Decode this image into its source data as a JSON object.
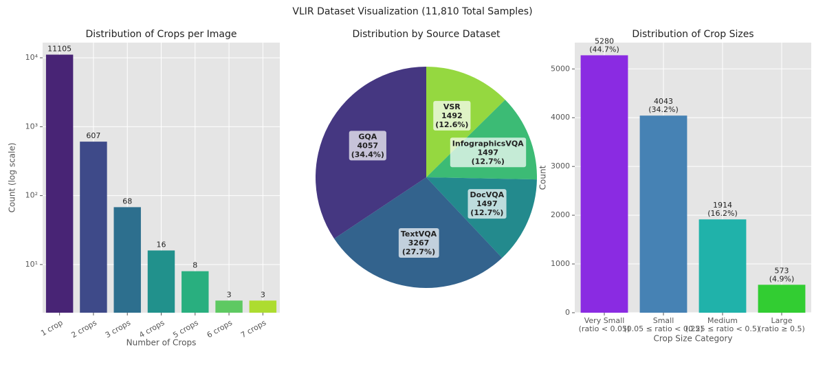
{
  "title": "VLIR Dataset Visualization (11,810 Total Samples)",
  "chart_data": [
    {
      "type": "bar",
      "title": "Distribution of Crops per Image",
      "categories": [
        "1 crop",
        "2 crops",
        "3 crops",
        "4 crops",
        "5 crops",
        "6 crops",
        "7 crops"
      ],
      "values": [
        11105,
        607,
        68,
        16,
        8,
        3,
        3
      ],
      "colors": [
        "#482475",
        "#3e4a89",
        "#2d6f8e",
        "#21918c",
        "#29af7f",
        "#5ec962",
        "#addc30"
      ],
      "x_label": "Number of Crops",
      "y_label": "Count (log scale)",
      "log_scale": true,
      "ylim": [
        2,
        16600
      ],
      "yticks": [
        {
          "value": 10,
          "label": "10¹"
        },
        {
          "value": 100,
          "label": "10²"
        },
        {
          "value": 1000,
          "label": "10³"
        },
        {
          "value": 10000,
          "label": "10⁴"
        }
      ],
      "xtick_rotation": 30,
      "grid": true
    },
    {
      "type": "pie",
      "title": "Distribution by Source Dataset",
      "categories": [
        "VSR",
        "InfographicsVQA",
        "DocVQA",
        "TextVQA",
        "GQA"
      ],
      "values": [
        1492,
        1497,
        1497,
        3267,
        4057
      ],
      "percent_labels": [
        "(12.6%)",
        "(12.7%)",
        "(12.7%)",
        "(27.7%)",
        "(34.4%)"
      ],
      "colors": [
        "#95d840",
        "#3cbb75",
        "#238a8d",
        "#33638d",
        "#453781"
      ]
    },
    {
      "type": "bar",
      "title": "Distribution of Crop Sizes",
      "categories": [
        "Very Small\n(ratio < 0.05)",
        "Small\n(0.05 ≤ ratio < 0.25)",
        "Medium\n(0.25 ≤ ratio < 0.5)",
        "Large\n(ratio ≥ 0.5)"
      ],
      "values": [
        5280,
        4043,
        1914,
        573
      ],
      "percent_labels": [
        "(44.7%)",
        "(34.2%)",
        "(16.2%)",
        "(4.9%)"
      ],
      "colors": [
        "#8a2be2",
        "#4682b4",
        "#20b2aa",
        "#32cd32"
      ],
      "x_label": "Crop Size Category",
      "y_label": "Count",
      "ylim": [
        0,
        5540
      ],
      "yticks": [
        0,
        1000,
        2000,
        3000,
        4000,
        5000
      ],
      "grid": true
    }
  ]
}
